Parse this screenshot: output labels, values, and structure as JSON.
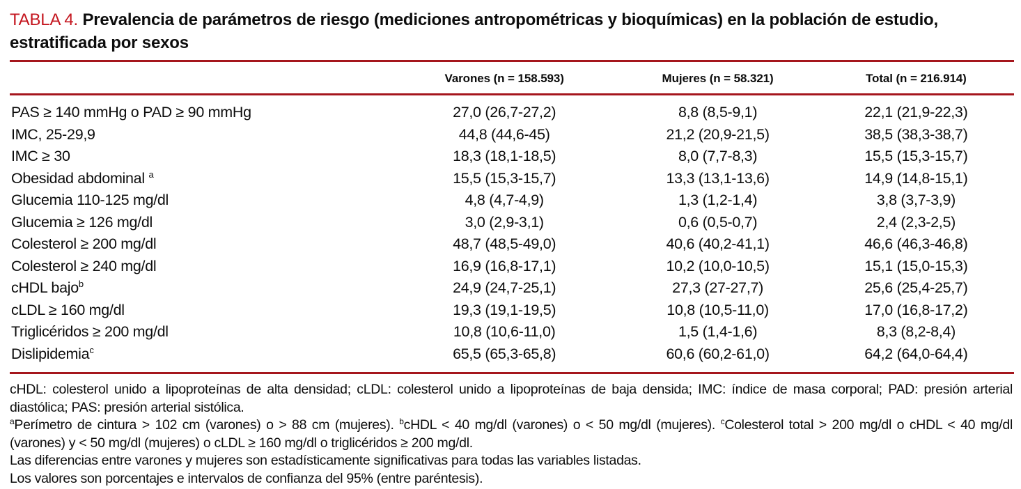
{
  "title": {
    "label": "TABLA 4.",
    "text": " Prevalencia de parámetros de riesgo (mediciones antropométricas y bioquímicas) en la población de estudio, estratificada por sexos"
  },
  "accent_color": "#a5161d",
  "title_label_color": "#c4161f",
  "table": {
    "columns": [
      "Varones (n = 158.593)",
      "Mujeres (n = 58.321)",
      "Total (n = 216.914)"
    ],
    "rows": [
      {
        "label": "PAS ≥ 140 mmHg o PAD ≥ 90 mmHg",
        "sup": "",
        "varones": "27,0 (26,7-27,2)",
        "mujeres": "8,8 (8,5-9,1)",
        "total": "22,1 (21,9-22,3)"
      },
      {
        "label": "IMC, 25-29,9",
        "sup": "",
        "varones": "44,8 (44,6-45)",
        "mujeres": "21,2 (20,9-21,5)",
        "total": "38,5 (38,3-38,7)"
      },
      {
        "label": "IMC ≥ 30",
        "sup": "",
        "varones": "18,3 (18,1-18,5)",
        "mujeres": "8,0 (7,7-8,3)",
        "total": "15,5 (15,3-15,7)"
      },
      {
        "label": "Obesidad abdominal ",
        "sup": "a",
        "varones": "15,5 (15,3-15,7)",
        "mujeres": "13,3 (13,1-13,6)",
        "total": "14,9 (14,8-15,1)"
      },
      {
        "label": "Glucemia 110-125 mg/dl",
        "sup": "",
        "varones": "4,8 (4,7-4,9)",
        "mujeres": "1,3 (1,2-1,4)",
        "total": "3,8 (3,7-3,9)"
      },
      {
        "label": "Glucemia ≥ 126 mg/dl",
        "sup": "",
        "varones": "3,0 (2,9-3,1)",
        "mujeres": "0,6 (0,5-0,7)",
        "total": "2,4 (2,3-2,5)"
      },
      {
        "label": "Colesterol ≥ 200 mg/dl",
        "sup": "",
        "varones": "48,7 (48,5-49,0)",
        "mujeres": "40,6 (40,2-41,1)",
        "total": "46,6 (46,3-46,8)"
      },
      {
        "label": "Colesterol ≥ 240 mg/dl",
        "sup": "",
        "varones": "16,9 (16,8-17,1)",
        "mujeres": "10,2 (10,0-10,5)",
        "total": "15,1 (15,0-15,3)"
      },
      {
        "label": "cHDL bajo",
        "sup": "b",
        "varones": "24,9 (24,7-25,1)",
        "mujeres": "27,3 (27-27,7)",
        "total": "25,6 (25,4-25,7)"
      },
      {
        "label": "cLDL ≥ 160 mg/dl",
        "sup": "",
        "varones": "19,3 (19,1-19,5)",
        "mujeres": "10,8 (10,5-11,0)",
        "total": "17,0 (16,8-17,2)"
      },
      {
        "label": "Triglicéridos ≥ 200 mg/dl",
        "sup": "",
        "varones": "10,8 (10,6-11,0)",
        "mujeres": "1,5 (1,4-1,6)",
        "total": "8,3 (8,2-8,4)"
      },
      {
        "label": "Dislipidemia",
        "sup": "c",
        "varones": "65,5 (65,3-65,8)",
        "mujeres": "60,6 (60,2-61,0)",
        "total": "64,2 (64,0-64,4)"
      }
    ]
  },
  "footnotes": [
    {
      "segments": [
        {
          "t": "cHDL: colesterol unido a lipoproteínas de alta densidad; cLDL: colesterol unido a lipoproteínas de baja densida; IMC: índice de masa corporal; PAD: presión arterial diastólica; PAS: presión arterial sistólica."
        }
      ]
    },
    {
      "segments": [
        {
          "sup": "a"
        },
        {
          "t": "Perímetro de cintura > 102 cm (varones) o > 88 cm (mujeres). "
        },
        {
          "sup": "b"
        },
        {
          "t": "cHDL < 40 mg/dl (varones) o < 50 mg/dl (mujeres). "
        },
        {
          "sup": "c"
        },
        {
          "t": "Colesterol total > 200 mg/dl o cHDL < 40 mg/dl (varones) y < 50 mg/dl (mujeres) o cLDL ≥ 160 mg/dl o triglicéridos ≥ 200 mg/dl."
        }
      ]
    },
    {
      "segments": [
        {
          "t": "Las diferencias entre varones y mujeres son estadísticamente significativas para todas las variables listadas."
        }
      ]
    },
    {
      "segments": [
        {
          "t": "Los valores son porcentajes e intervalos de confianza del 95% (entre paréntesis)."
        }
      ]
    }
  ]
}
